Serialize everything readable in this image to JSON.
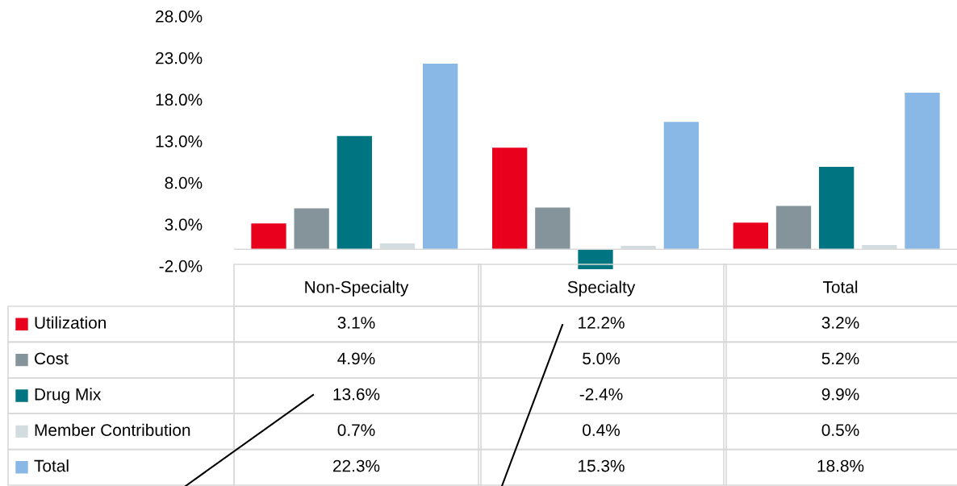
{
  "chart_data": {
    "type": "bar",
    "categories": [
      "Non-Specialty",
      "Specialty",
      "Total"
    ],
    "series": [
      {
        "name": "Utilization",
        "color": "#e8001c",
        "values": [
          3.1,
          12.2,
          3.2
        ],
        "value_labels": [
          "3.1%",
          "12.2%",
          "3.2%"
        ]
      },
      {
        "name": "Cost",
        "color": "#85949b",
        "values": [
          4.9,
          5.0,
          5.2
        ],
        "value_labels": [
          "4.9%",
          "5.0%",
          "5.2%"
        ]
      },
      {
        "name": "Drug Mix",
        "color": "#007582",
        "values": [
          13.6,
          -2.4,
          9.9
        ],
        "value_labels": [
          "13.6%",
          "-2.4%",
          "9.9%"
        ]
      },
      {
        "name": "Member Contribution",
        "color": "#d3dde0",
        "values": [
          0.7,
          0.4,
          0.5
        ],
        "value_labels": [
          "0.7%",
          "0.4%",
          "0.5%"
        ]
      },
      {
        "name": "Total",
        "color": "#8ab8e6",
        "values": [
          22.3,
          15.3,
          18.8
        ],
        "value_labels": [
          "22.3%",
          "15.3%",
          "18.8%"
        ]
      }
    ],
    "ylim": [
      -2.4,
      28
    ],
    "yticks": [
      {
        "value": -2,
        "label": "-2.0%"
      },
      {
        "value": 3,
        "label": "3.0%"
      },
      {
        "value": 8,
        "label": "8.0%"
      },
      {
        "value": 13,
        "label": "13.0%"
      },
      {
        "value": 18,
        "label": "18.0%"
      },
      {
        "value": 23,
        "label": "23.0%"
      },
      {
        "value": 28,
        "label": "28.0%"
      }
    ],
    "grid": false,
    "legend": "bottom left"
  }
}
